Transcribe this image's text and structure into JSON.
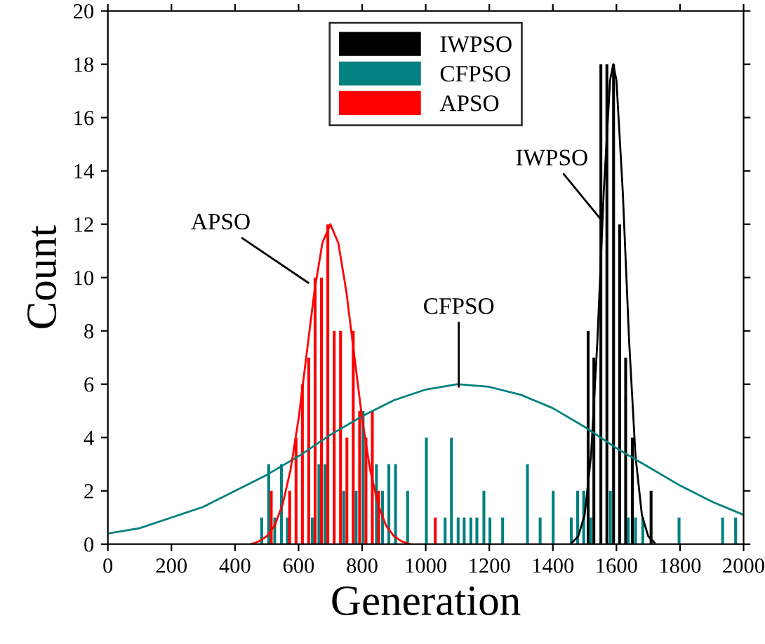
{
  "chart_data": {
    "type": "bar",
    "xlabel": "Generation",
    "ylabel": "Count",
    "xlim": [
      0,
      2000
    ],
    "xticks": [
      0,
      200,
      400,
      600,
      800,
      1000,
      1200,
      1400,
      1600,
      1800,
      2000
    ],
    "ylim": [
      0,
      20
    ],
    "yticks": [
      0,
      2,
      4,
      6,
      8,
      10,
      12,
      14,
      16,
      18,
      20
    ],
    "grid": false,
    "legend": "top",
    "series": [
      {
        "name": "IWPSO",
        "color": "#000000",
        "x": [
          1511,
          1529,
          1551,
          1570,
          1591,
          1610,
          1629,
          1650,
          1709
        ],
        "values": [
          8,
          7,
          18,
          18,
          18,
          12,
          7,
          4,
          2
        ]
      },
      {
        "name": "CFPSO",
        "color": "#008080",
        "x": [
          484,
          506,
          525,
          546,
          565,
          643,
          664,
          683,
          742,
          781,
          803,
          845,
          864,
          884,
          905,
          943,
          1002,
          1061,
          1081,
          1102,
          1121,
          1142,
          1161,
          1183,
          1202,
          1242,
          1320,
          1360,
          1401,
          1458,
          1478,
          1497,
          1519,
          1581,
          1637,
          1660,
          1683,
          1797,
          1934,
          1975
        ],
        "values": [
          1,
          3,
          1,
          3,
          1,
          1,
          3,
          3,
          2,
          2,
          5,
          3,
          2,
          3,
          3,
          2,
          4,
          1,
          4,
          1,
          1,
          1,
          1,
          2,
          1,
          1,
          3,
          1,
          2,
          1,
          2,
          2,
          1,
          2,
          1,
          1,
          1,
          1,
          1,
          1
        ]
      },
      {
        "name": "APSO",
        "color": "#ff0000",
        "x": [
          514,
          572,
          592,
          612,
          632,
          652,
          672,
          692,
          712,
          732,
          752,
          772,
          792,
          812,
          832,
          852,
          1030
        ],
        "values": [
          2,
          2,
          4,
          6,
          7,
          10,
          10,
          12,
          8,
          8,
          4,
          8,
          5,
          4,
          5,
          2,
          1
        ]
      },
      {
        "type": "line",
        "color": "#000000",
        "x": [
          1460,
          1480,
          1500,
          1520,
          1540,
          1560,
          1580,
          1590,
          1600,
          1620,
          1640,
          1660,
          1680,
          1700,
          1720
        ],
        "values": [
          0.05,
          0.3,
          1.1,
          3.3,
          7.6,
          13.2,
          17.4,
          18,
          17.4,
          13.2,
          7.6,
          3.3,
          1.1,
          0.3,
          0.05
        ]
      },
      {
        "type": "line",
        "color": "#008080",
        "x": [
          0,
          100,
          200,
          300,
          400,
          500,
          600,
          700,
          800,
          900,
          1000,
          1100,
          1200,
          1300,
          1400,
          1500,
          1600,
          1700,
          1800,
          1900,
          2000
        ],
        "values": [
          0.4,
          0.6,
          1.0,
          1.4,
          2.0,
          2.6,
          3.3,
          4.1,
          4.8,
          5.4,
          5.8,
          6.0,
          5.9,
          5.6,
          5.1,
          4.4,
          3.6,
          2.9,
          2.2,
          1.6,
          1.1
        ]
      },
      {
        "type": "line",
        "color": "#ff0000",
        "x": [
          450,
          475,
          500,
          525,
          550,
          575,
          600,
          625,
          650,
          675,
          700,
          725,
          750,
          775,
          800,
          825,
          850,
          875,
          900,
          925,
          950
        ],
        "values": [
          0.0,
          0.1,
          0.3,
          0.7,
          1.5,
          2.8,
          4.7,
          7.1,
          9.5,
          11.3,
          12,
          11.3,
          9.5,
          7.1,
          4.7,
          2.8,
          1.5,
          0.7,
          0.3,
          0.1,
          0.0
        ]
      }
    ],
    "annotations": [
      {
        "text": "APSO",
        "x": 631,
        "y": 9.8
      },
      {
        "text": "CFPSO",
        "x": 1104,
        "y": 5.9
      },
      {
        "text": "IWPSO",
        "x": 1550,
        "y": 12.2
      }
    ]
  }
}
